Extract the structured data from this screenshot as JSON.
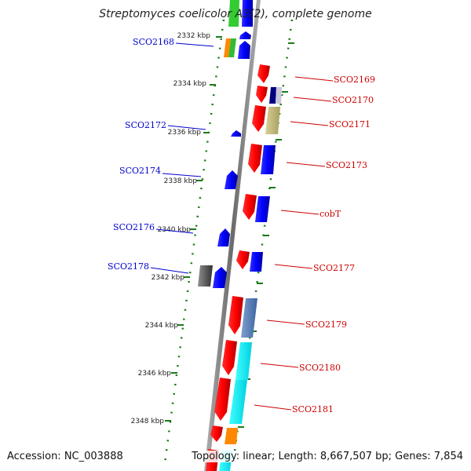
{
  "title": "Streptomyces coelicolor A3(2), complete genome",
  "accession": "Accession: NC_003888",
  "topology": "Topology: linear; Length: 8,667,507 bp; Genes: 7,854",
  "colors": {
    "plus_label": "#cc0000",
    "minus_label": "#0000cc",
    "backbone": "#888888",
    "ruler": "#1a7a1a"
  },
  "ruler_ticks": [
    "2332 kbp",
    "2334 kbp",
    "2336 kbp",
    "2338 kbp",
    "2340 kbp",
    "2342 kbp",
    "2344 kbp",
    "2346 kbp",
    "2348 kbp"
  ],
  "left_labels": [
    "SCO2168",
    "SCO2172",
    "SCO2174",
    "SCO2176",
    "SCO2178"
  ],
  "right_labels": [
    "SCO2169",
    "SCO2170",
    "SCO2171",
    "SCO2173",
    "cobT",
    "SCO2177",
    "SCO2179",
    "SCO2180",
    "SCO2181"
  ]
}
